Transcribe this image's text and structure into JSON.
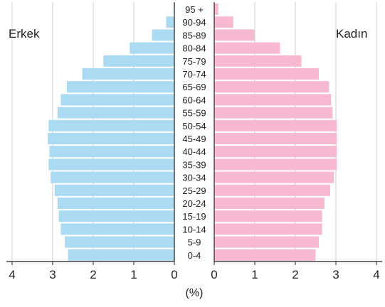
{
  "chart_data": {
    "type": "bar",
    "subtype": "population-pyramid",
    "categories": [
      "95 +",
      "90-94",
      "85-89",
      "80-84",
      "75-79",
      "70-74",
      "65-69",
      "60-64",
      "55-59",
      "50-54",
      "45-49",
      "40-44",
      "35-39",
      "30-34",
      "25-29",
      "20-24",
      "15-19",
      "10-14",
      "5-9",
      "0-4"
    ],
    "series": [
      {
        "name": "Erkek",
        "side": "left",
        "color": "#aadbf2",
        "values": [
          0.02,
          0.2,
          0.55,
          1.1,
          1.75,
          2.27,
          2.65,
          2.8,
          2.88,
          3.1,
          3.12,
          3.08,
          3.1,
          3.05,
          2.95,
          2.88,
          2.85,
          2.8,
          2.7,
          2.62
        ]
      },
      {
        "name": "Kadın",
        "side": "right",
        "color": "#f7b8d2",
        "values": [
          0.1,
          0.47,
          1.0,
          1.62,
          2.15,
          2.58,
          2.83,
          2.88,
          2.92,
          3.02,
          3.02,
          3.02,
          3.02,
          2.95,
          2.86,
          2.72,
          2.66,
          2.66,
          2.58,
          2.5
        ]
      }
    ],
    "xlabel": "(%)",
    "left_ticks": [
      "4",
      "3",
      "2",
      "1",
      "0"
    ],
    "right_ticks": [
      "0",
      "1",
      "2",
      "3",
      "4"
    ],
    "xlim": [
      0,
      4
    ],
    "grid": true
  }
}
